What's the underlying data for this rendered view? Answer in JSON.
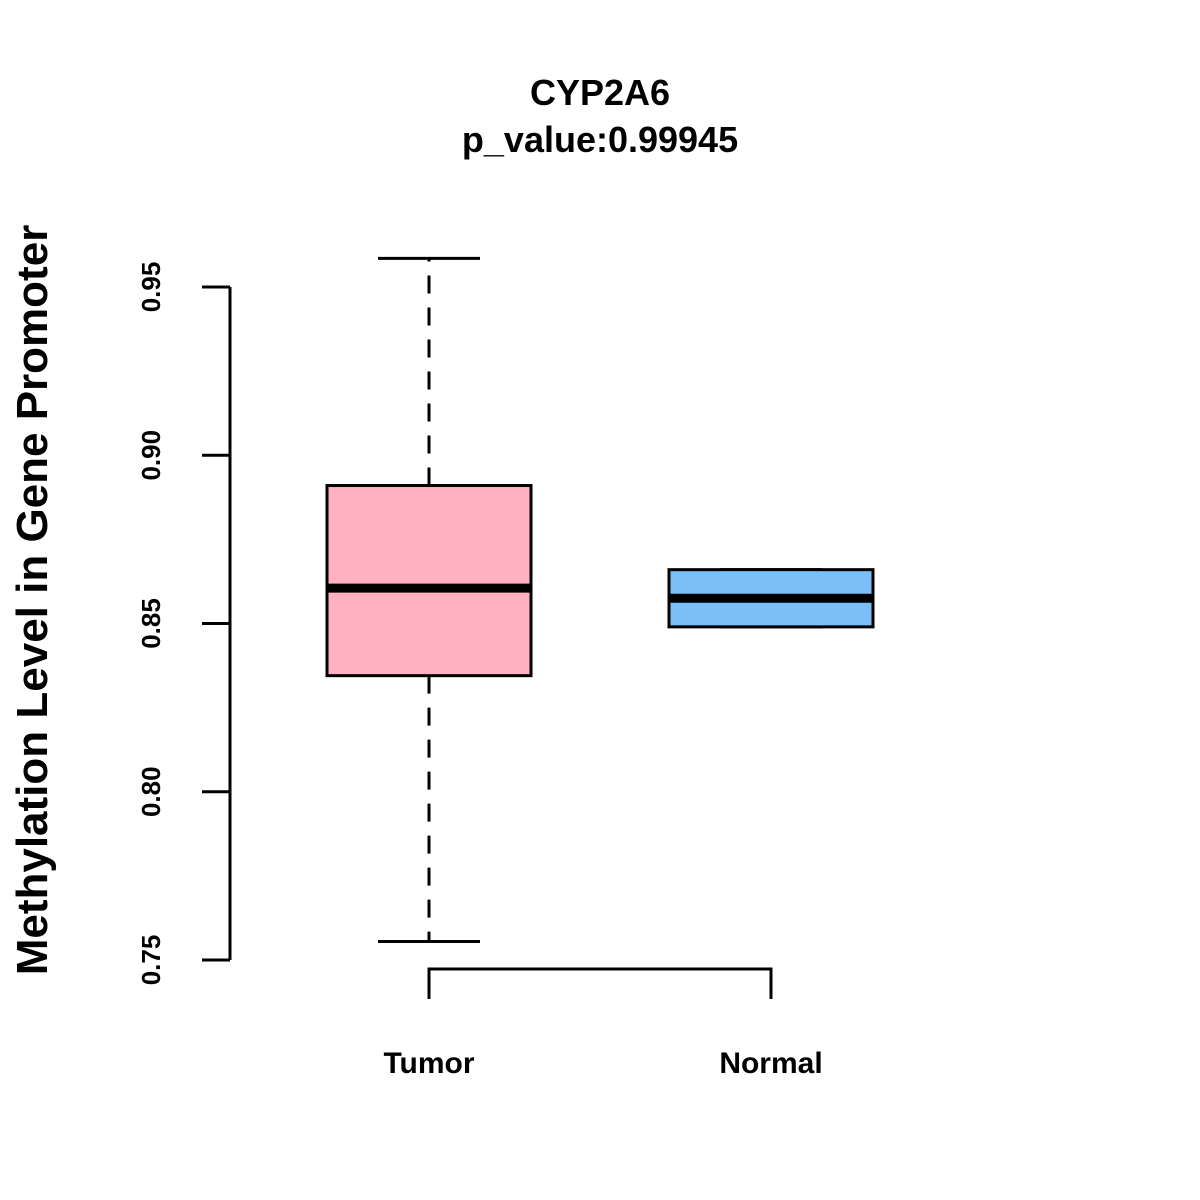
{
  "chart_data": {
    "type": "boxplot",
    "title": "CYP2A6",
    "subtitle": "p_value:0.99945",
    "xlabel": "",
    "ylabel": "Methylation Level in Gene Promoter",
    "ylim": [
      0.75,
      0.95
    ],
    "yticks": [
      "0.75",
      "0.80",
      "0.85",
      "0.90",
      "0.95"
    ],
    "categories": [
      "Tumor",
      "Normal"
    ],
    "boxes": [
      {
        "name": "Tumor",
        "color": "#FFB0C1",
        "whisker_low": 0.7555,
        "q1": 0.8345,
        "median": 0.8605,
        "q3": 0.891,
        "whisker_high": 0.9585
      },
      {
        "name": "Normal",
        "color": "#7AC0F7",
        "whisker_low": 0.849,
        "q1": 0.849,
        "median": 0.8575,
        "q3": 0.866,
        "whisker_high": 0.866
      }
    ],
    "comparison_bracket": {
      "from": "Tumor",
      "to": "Normal"
    }
  }
}
